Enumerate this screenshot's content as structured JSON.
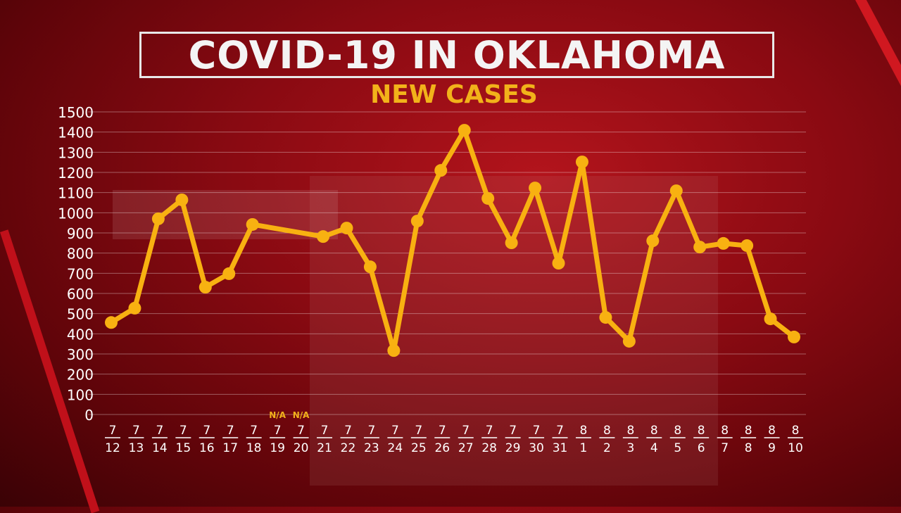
{
  "title": "COVID-19 IN OKLAHOMA",
  "subtitle": "NEW CASES",
  "colors": {
    "line": "#f8b111",
    "na_label": "#f2b21a",
    "axis_text": "#ffffff",
    "background": "#8a0a12"
  },
  "chart_data": {
    "type": "line",
    "title": "COVID-19 IN OKLAHOMA",
    "subtitle": "NEW CASES",
    "ylim": [
      0,
      1500
    ],
    "yticks": [
      0,
      100,
      200,
      300,
      400,
      500,
      600,
      700,
      800,
      900,
      1000,
      1100,
      1200,
      1300,
      1400,
      1500
    ],
    "grid": true,
    "categories": [
      {
        "m": "7",
        "d": "12"
      },
      {
        "m": "7",
        "d": "13"
      },
      {
        "m": "7",
        "d": "14"
      },
      {
        "m": "7",
        "d": "15"
      },
      {
        "m": "7",
        "d": "16"
      },
      {
        "m": "7",
        "d": "17"
      },
      {
        "m": "7",
        "d": "18"
      },
      {
        "m": "7",
        "d": "19"
      },
      {
        "m": "7",
        "d": "20"
      },
      {
        "m": "7",
        "d": "21"
      },
      {
        "m": "7",
        "d": "22"
      },
      {
        "m": "7",
        "d": "23"
      },
      {
        "m": "7",
        "d": "24"
      },
      {
        "m": "7",
        "d": "25"
      },
      {
        "m": "7",
        "d": "26"
      },
      {
        "m": "7",
        "d": "27"
      },
      {
        "m": "7",
        "d": "28"
      },
      {
        "m": "7",
        "d": "29"
      },
      {
        "m": "7",
        "d": "30"
      },
      {
        "m": "7",
        "d": "31"
      },
      {
        "m": "8",
        "d": "1"
      },
      {
        "m": "8",
        "d": "2"
      },
      {
        "m": "8",
        "d": "3"
      },
      {
        "m": "8",
        "d": "4"
      },
      {
        "m": "8",
        "d": "5"
      },
      {
        "m": "8",
        "d": "6"
      },
      {
        "m": "8",
        "d": "7"
      },
      {
        "m": "8",
        "d": "8"
      },
      {
        "m": "8",
        "d": "9"
      },
      {
        "m": "8",
        "d": "10"
      }
    ],
    "values": [
      456,
      527,
      970,
      1064,
      631,
      698,
      942,
      null,
      null,
      882,
      924,
      732,
      317,
      959,
      1210,
      1409,
      1071,
      851,
      1123,
      750,
      1252,
      481,
      363,
      861,
      1109,
      830,
      848,
      837,
      474,
      384
    ],
    "na_label": "N/A"
  }
}
